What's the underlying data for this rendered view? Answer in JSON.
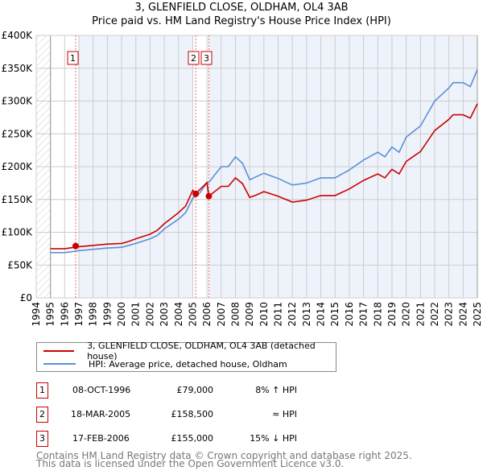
{
  "title": "3, GLENFIELD CLOSE, OLDHAM, OL4 3AB",
  "subtitle": "Price paid vs. HM Land Registry's House Price Index (HPI)",
  "colors": {
    "property": "#cc0000",
    "hpi": "#5b8fd4",
    "shade": "#eef3fb",
    "grid": "#cccccc"
  },
  "chart_data": {
    "type": "line",
    "title": "3, GLENFIELD CLOSE, OLDHAM, OL4 3AB — Price paid vs. HM Land Registry's House Price Index (HPI)",
    "xlim": [
      1994,
      2025
    ],
    "ylim": [
      0,
      400000
    ],
    "x_ticks": [
      "1994",
      "1995",
      "1996",
      "1997",
      "1998",
      "1999",
      "2000",
      "2001",
      "2002",
      "2003",
      "2004",
      "2005",
      "2006",
      "2007",
      "2008",
      "2009",
      "2010",
      "2011",
      "2012",
      "2013",
      "2014",
      "2015",
      "2016",
      "2017",
      "2018",
      "2019",
      "2020",
      "2021",
      "2022",
      "2023",
      "2024",
      "2025"
    ],
    "y_ticks": [
      {
        "v": 0,
        "label": "£0"
      },
      {
        "v": 50000,
        "label": "£50K"
      },
      {
        "v": 100000,
        "label": "£100K"
      },
      {
        "v": 150000,
        "label": "£150K"
      },
      {
        "v": 200000,
        "label": "£200K"
      },
      {
        "v": 250000,
        "label": "£250K"
      },
      {
        "v": 300000,
        "label": "£300K"
      },
      {
        "v": 350000,
        "label": "£350K"
      },
      {
        "v": 400000,
        "label": "£400K"
      }
    ],
    "grid": true,
    "x": [
      1995,
      1996,
      1997,
      1998,
      1999,
      2000,
      2000.5,
      2001,
      2002,
      2002.5,
      2003,
      2004,
      2004.5,
      2005,
      2005.2,
      2005.5,
      2006,
      2006.13,
      2007,
      2007.5,
      2008,
      2008.5,
      2009,
      2009.5,
      2010,
      2011,
      2012,
      2013,
      2014,
      2015,
      2016,
      2017,
      2018,
      2018.5,
      2019,
      2019.5,
      2020,
      2021,
      2022,
      2023,
      2023.3,
      2024,
      2024.5,
      2025
    ],
    "series": [
      {
        "name": "3, GLENFIELD CLOSE, OLDHAM, OL4 3AB (detached house)",
        "color": "#cc0000",
        "values": [
          75000,
          75000,
          78000,
          80000,
          82000,
          83000,
          86000,
          90000,
          97000,
          103000,
          113000,
          130000,
          140000,
          164000,
          158500,
          165000,
          176000,
          155000,
          170000,
          170000,
          183000,
          174000,
          153000,
          157000,
          162000,
          155000,
          146000,
          149000,
          156000,
          156000,
          166000,
          179000,
          189000,
          183000,
          196000,
          189000,
          208000,
          223000,
          255000,
          272000,
          279000,
          279000,
          274000,
          296000
        ]
      },
      {
        "name": "HPI: Average price, detached house, Oldham",
        "color": "#5b8fd4",
        "values": [
          69000,
          69000,
          72000,
          74000,
          76000,
          77000,
          80000,
          83000,
          90000,
          95000,
          105000,
          120000,
          130000,
          152000,
          155000,
          160000,
          175000,
          176000,
          200000,
          200000,
          215000,
          205000,
          180000,
          185000,
          190000,
          182000,
          172000,
          175000,
          183000,
          183000,
          195000,
          210000,
          222000,
          215000,
          230000,
          222000,
          245000,
          262000,
          300000,
          320000,
          328000,
          328000,
          322000,
          348000
        ]
      }
    ],
    "sales": [
      {
        "id": "1",
        "x": 1996.77,
        "value": 79000
      },
      {
        "id": "2",
        "x": 2005.21,
        "value": 158500
      },
      {
        "id": "3",
        "x": 2006.13,
        "value": 155000
      }
    ],
    "legend_position": "below"
  },
  "legend": {
    "property": "3, GLENFIELD CLOSE, OLDHAM, OL4 3AB (detached house)",
    "hpi": "HPI: Average price, detached house, Oldham"
  },
  "table": [
    {
      "id": "1",
      "date": "08-OCT-1996",
      "price": "£79,000",
      "hpi": "8% ↑ HPI"
    },
    {
      "id": "2",
      "date": "18-MAR-2005",
      "price": "£158,500",
      "hpi": "≈ HPI"
    },
    {
      "id": "3",
      "date": "17-FEB-2006",
      "price": "£155,000",
      "hpi": "15% ↓ HPI"
    }
  ],
  "footer": {
    "line1": "Contains HM Land Registry data © Crown copyright and database right 2025.",
    "line2": "This data is licensed under the Open Government Licence v3.0."
  }
}
